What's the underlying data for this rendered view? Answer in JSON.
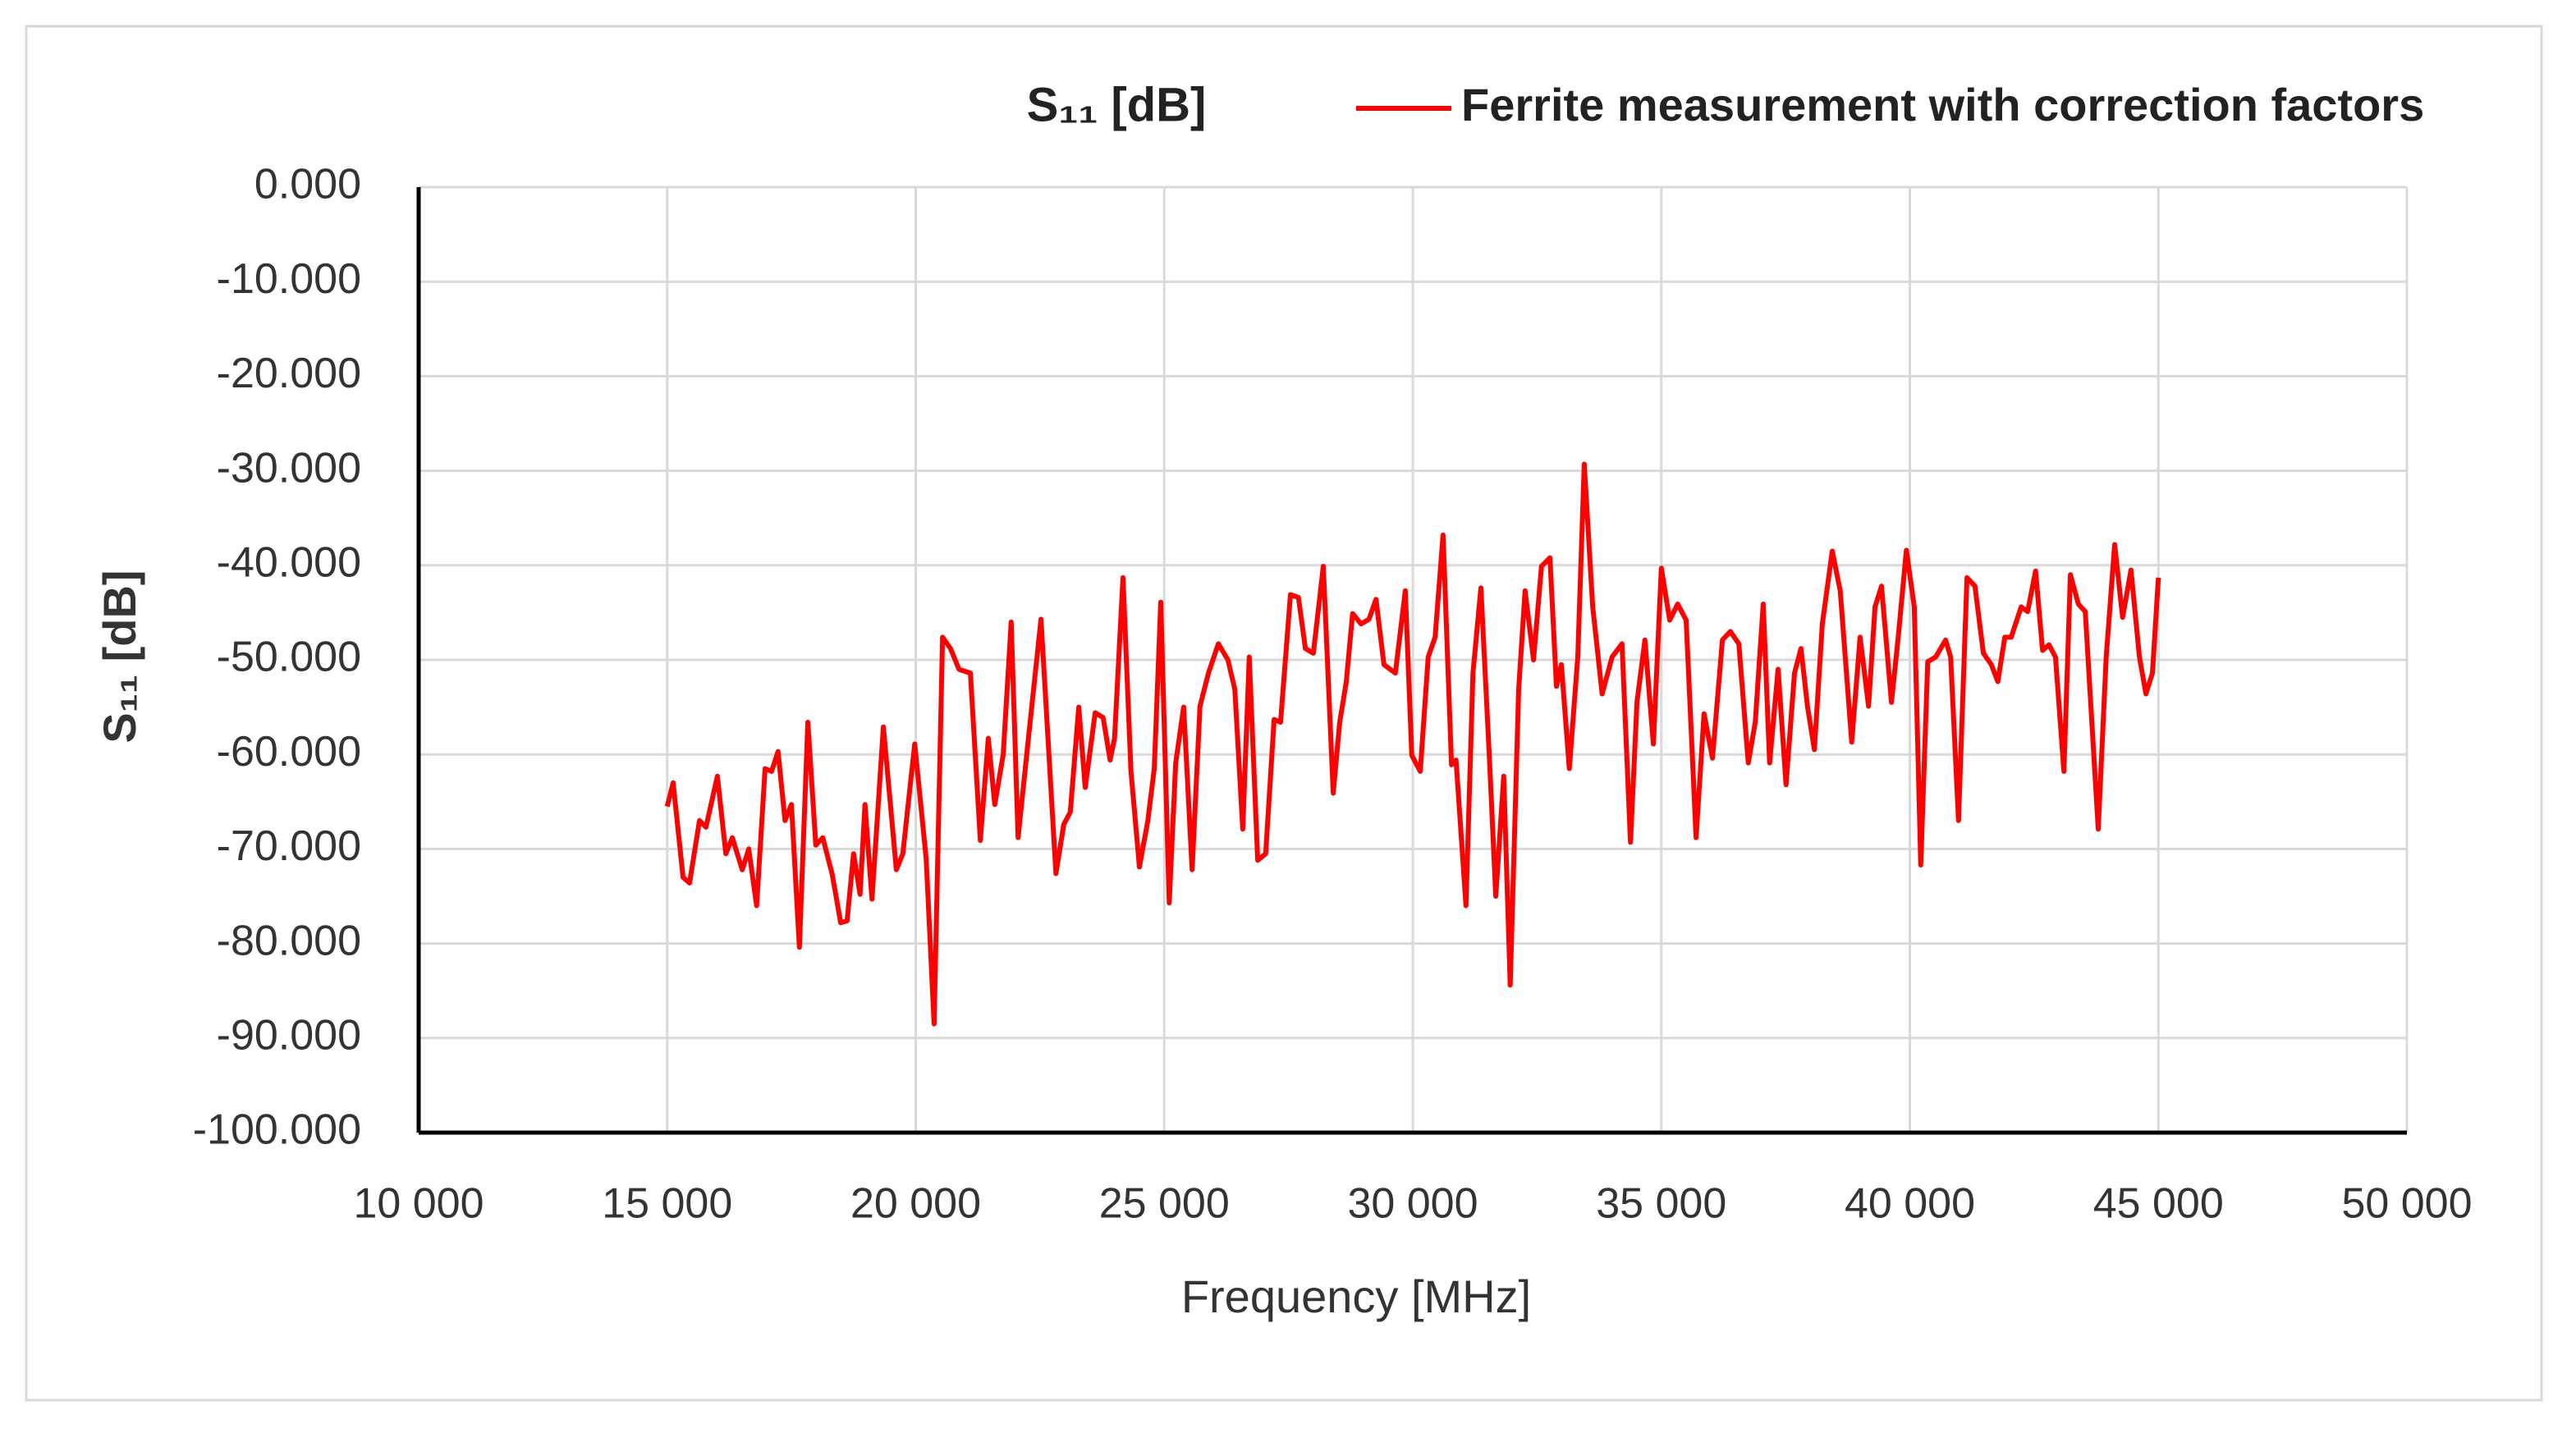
{
  "chart_data": {
    "type": "line",
    "title": "S₁₁ [dB]",
    "x_label": "Frequency [MHz]",
    "y_label": "S₁₁ [dB]",
    "xlim": [
      10000,
      50000
    ],
    "xticks": [
      {
        "value": 10000,
        "label": "10 000"
      },
      {
        "value": 15000,
        "label": "15 000"
      },
      {
        "value": 20000,
        "label": "20 000"
      },
      {
        "value": 25000,
        "label": "25 000"
      },
      {
        "value": 30000,
        "label": "30 000"
      },
      {
        "value": 35000,
        "label": "35 000"
      },
      {
        "value": 40000,
        "label": "40 000"
      },
      {
        "value": 45000,
        "label": "45 000"
      },
      {
        "value": 50000,
        "label": "50 000"
      }
    ],
    "ylim": [
      -100,
      0
    ],
    "yticks": [
      {
        "value": 0,
        "label": "0.000"
      },
      {
        "value": -10,
        "label": "-10.000"
      },
      {
        "value": -20,
        "label": "-20.000"
      },
      {
        "value": -30,
        "label": "-30.000"
      },
      {
        "value": -40,
        "label": "-40.000"
      },
      {
        "value": -50,
        "label": "-50.000"
      },
      {
        "value": -60,
        "label": "-60.000"
      },
      {
        "value": -70,
        "label": "-70.000"
      },
      {
        "value": -80,
        "label": "-80.000"
      },
      {
        "value": -90,
        "label": "-90.000"
      },
      {
        "value": -100,
        "label": "-100.000"
      }
    ],
    "grid": true,
    "legend": "top-right",
    "x": [
      15000,
      15120,
      15320,
      15450,
      15650,
      15780,
      16010,
      16180,
      16310,
      16510,
      16640,
      16800,
      16970,
      17100,
      17230,
      17370,
      17500,
      17660,
      17830,
      17990,
      18130,
      18320,
      18490,
      18620,
      18750,
      18880,
      18980,
      19120,
      19350,
      19610,
      19740,
      19980,
      20210,
      20370,
      20540,
      20700,
      20870,
      21100,
      21300,
      21460,
      21590,
      21760,
      21920,
      22060,
      22250,
      22520,
      22820,
      22980,
      23110,
      23280,
      23410,
      23610,
      23770,
      23910,
      24000,
      24170,
      24330,
      24500,
      24670,
      24800,
      24930,
      25100,
      25230,
      25390,
      25560,
      25720,
      25890,
      26090,
      26280,
      26420,
      26580,
      26710,
      26880,
      27040,
      27210,
      27340,
      27540,
      27700,
      27840,
      28000,
      28200,
      28400,
      28530,
      28660,
      28790,
      28960,
      29120,
      29260,
      29420,
      29650,
      29850,
      29980,
      30150,
      30310,
      30450,
      30610,
      30780,
      30870,
      31070,
      31210,
      31370,
      31540,
      31670,
      31830,
      31960,
      32130,
      32260,
      32430,
      32590,
      32760,
      32890,
      32990,
      33150,
      33320,
      33450,
      33620,
      33810,
      34010,
      34210,
      34380,
      34510,
      34670,
      34840,
      35000,
      35170,
      35330,
      35500,
      35700,
      35860,
      36030,
      36230,
      36390,
      36560,
      36750,
      36890,
      37050,
      37180,
      37350,
      37510,
      37680,
      37810,
      37940,
      38080,
      38240,
      38440,
      38600,
      38830,
      39000,
      39170,
      39300,
      39430,
      39630,
      39760,
      39930,
      40090,
      40220,
      40360,
      40520,
      40720,
      40820,
      40980,
      41150,
      41310,
      41480,
      41640,
      41770,
      41910,
      42040,
      42240,
      42370,
      42530,
      42670,
      42800,
      42930,
      43100,
      43230,
      43390,
      43530,
      43790,
      43950,
      44120,
      44280,
      44450,
      44620,
      44750,
      44880,
      45000
    ],
    "series": [
      {
        "name": "Ferrite measurement with correction factors",
        "color": "#ff0000",
        "values": [
          -65.5,
          -63,
          -73,
          -73.6,
          -67,
          -67.7,
          -62.3,
          -70.5,
          -68.8,
          -72.2,
          -70,
          -76,
          -61.5,
          -61.8,
          -59.7,
          -67,
          -65.3,
          -80.4,
          -56.6,
          -69.6,
          -68.8,
          -72.7,
          -77.8,
          -77.6,
          -70.5,
          -74.8,
          -65.3,
          -75.3,
          -57.1,
          -72.2,
          -70.5,
          -58.9,
          -71,
          -88.5,
          -47.6,
          -48.8,
          -51,
          -51.4,
          -69.1,
          -58.3,
          -65.3,
          -60,
          -46,
          -68.8,
          -59.2,
          -45.7,
          -72.6,
          -67.4,
          -66.1,
          -55,
          -63.5,
          -55.6,
          -56.1,
          -60.6,
          -58.3,
          -41.3,
          -61.8,
          -71.9,
          -67,
          -61.5,
          -43.9,
          -75.7,
          -60.9,
          -55,
          -72.2,
          -54.9,
          -51.4,
          -48.3,
          -50,
          -53.1,
          -67.9,
          -49.7,
          -71.2,
          -70.5,
          -56.3,
          -56.6,
          -43.1,
          -43.4,
          -48.8,
          -49.3,
          -40.1,
          -64.1,
          -56.6,
          -52.4,
          -45.1,
          -46.2,
          -45.7,
          -43.6,
          -50.5,
          -51.4,
          -42.7,
          -60.1,
          -61.8,
          -49.7,
          -47.6,
          -36.8,
          -61.1,
          -60.6,
          -76,
          -51.4,
          -42.4,
          -60.1,
          -75,
          -62.3,
          -84.4,
          -53.1,
          -42.7,
          -50,
          -40.1,
          -39.2,
          -52.8,
          -50.5,
          -61.5,
          -49.7,
          -29.3,
          -44.4,
          -53.6,
          -49.7,
          -48.3,
          -69.3,
          -54.5,
          -47.9,
          -58.9,
          -40.3,
          -45.8,
          -44.1,
          -45.8,
          -68.8,
          -55.7,
          -60.4,
          -47.9,
          -47,
          -48.3,
          -60.9,
          -56.6,
          -44.1,
          -60.9,
          -51,
          -63.2,
          -51.4,
          -48.8,
          -54.9,
          -59.5,
          -46.2,
          -38.5,
          -42.7,
          -58.7,
          -47.6,
          -54.9,
          -44.4,
          -42.2,
          -54.5,
          -47.9,
          -38.4,
          -44.4,
          -71.7,
          -50.2,
          -49.7,
          -47.9,
          -49.7,
          -67,
          -41.3,
          -42.2,
          -49.3,
          -50.5,
          -52.3,
          -47.6,
          -47.6,
          -44.4,
          -44.9,
          -40.6,
          -49,
          -48.4,
          -49.7,
          -61.8,
          -41,
          -44.1,
          -44.9,
          -67.9,
          -49.7,
          -37.8,
          -45.5,
          -40.5,
          -49.7,
          -53.6,
          -51.4,
          -41.3
        ]
      }
    ]
  }
}
